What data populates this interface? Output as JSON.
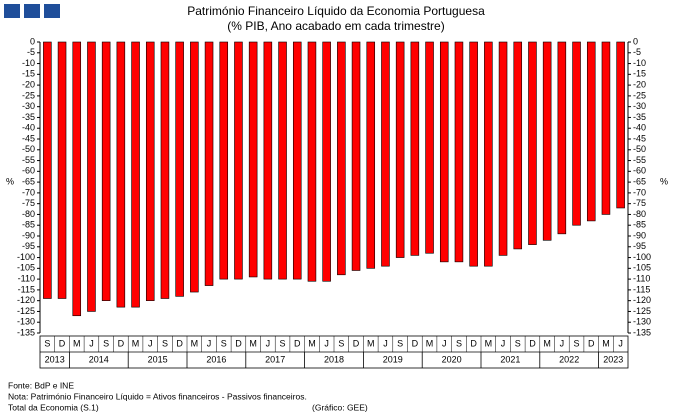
{
  "chart_data": {
    "type": "bar",
    "title": "Património Financeiro Líquido da Economia Portuguesa",
    "subtitle": "(% PIB, Ano acabado em cada trimestre)",
    "y_label": "%",
    "y2_label": "%",
    "categories": [
      "S",
      "D",
      "M",
      "J",
      "S",
      "D",
      "M",
      "J",
      "S",
      "D",
      "M",
      "J",
      "S",
      "D",
      "M",
      "J",
      "S",
      "D",
      "M",
      "J",
      "S",
      "D",
      "M",
      "J",
      "S",
      "D",
      "M",
      "J",
      "S",
      "D",
      "M",
      "J",
      "S",
      "D",
      "M",
      "J",
      "S",
      "D",
      "M",
      "J"
    ],
    "year_groups": [
      {
        "label": "2013",
        "count": 2
      },
      {
        "label": "2014",
        "count": 4
      },
      {
        "label": "2015",
        "count": 4
      },
      {
        "label": "2016",
        "count": 4
      },
      {
        "label": "2017",
        "count": 4
      },
      {
        "label": "2018",
        "count": 4
      },
      {
        "label": "2019",
        "count": 4
      },
      {
        "label": "2020",
        "count": 4
      },
      {
        "label": "2021",
        "count": 4
      },
      {
        "label": "2022",
        "count": 4
      },
      {
        "label": "2023",
        "count": 2
      }
    ],
    "values": [
      -119,
      -119,
      -127,
      -125,
      -120,
      -123,
      -123,
      -120,
      -119,
      -118,
      -116,
      -113,
      -110,
      -110,
      -109,
      -110,
      -110,
      -110,
      -111,
      -111,
      -108,
      -106,
      -105,
      -104,
      -100,
      -99,
      -98,
      -102,
      -102,
      -104,
      -104,
      -99,
      -96,
      -94,
      -92,
      -89,
      -85,
      -83,
      -80,
      -77
    ],
    "color": "#ff0000",
    "ylim": [
      0,
      -135
    ],
    "yticks": [
      0,
      -5,
      -10,
      -15,
      -20,
      -25,
      -30,
      -35,
      -40,
      -45,
      -50,
      -55,
      -60,
      -65,
      -70,
      -75,
      -80,
      -85,
      -90,
      -95,
      -100,
      -105,
      -110,
      -115,
      -120,
      -125,
      -130,
      -135
    ],
    "right_axis": true,
    "notes": [
      "Fonte: BdP e INE",
      "Nota: Património Financeiro Líquido = Ativos financeiros - Passivos financeiros.",
      "Total da Economia (S.1)"
    ],
    "credit": "(Gráfico: GEE)"
  }
}
